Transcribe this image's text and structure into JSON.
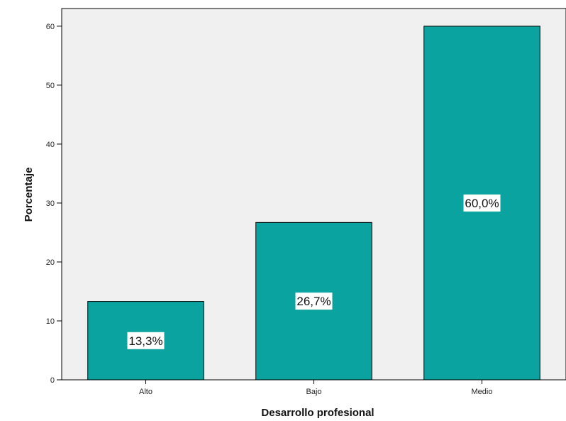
{
  "chart_data": {
    "type": "bar",
    "categories": [
      "Alto",
      "Bajo",
      "Medio"
    ],
    "values": [
      13.3,
      26.7,
      60.0
    ],
    "data_labels": [
      "13,3%",
      "26,7%",
      "60,0%"
    ],
    "title": "",
    "xlabel": "Desarrollo profesional",
    "ylabel": "Porcentaje",
    "ylim": [
      0,
      63
    ],
    "yticks": [
      0,
      10,
      20,
      30,
      40,
      50,
      60
    ],
    "grid": false,
    "colors": {
      "bar": "#0aa3a0",
      "bar_stroke": "#000000",
      "plot_background": "#f0f0f0"
    }
  }
}
